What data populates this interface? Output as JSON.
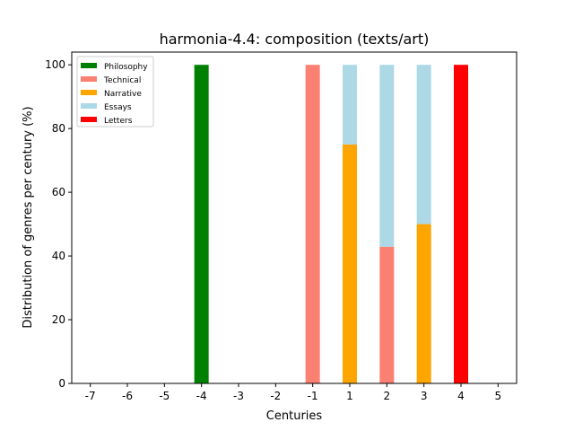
{
  "chart_data": {
    "type": "bar",
    "stacked": true,
    "title": "harmonia-4.4: composition (texts/art)",
    "xlabel": "Centuries",
    "ylabel": "Distribution of genres per century (%)",
    "categories": [
      "-7",
      "-6",
      "-5",
      "-4",
      "-3",
      "-2",
      "-1",
      "1",
      "2",
      "3",
      "4",
      "5"
    ],
    "ylim": [
      0,
      104
    ],
    "yticks": [
      0,
      20,
      40,
      60,
      80,
      100
    ],
    "grid": false,
    "legend_position": "top-left",
    "series": [
      {
        "name": "Philosophy",
        "color": "#008000",
        "values": [
          0,
          0,
          0,
          100,
          0,
          0,
          0,
          0,
          0,
          0,
          0,
          0
        ]
      },
      {
        "name": "Technical",
        "color": "#fa8072",
        "values": [
          0,
          0,
          0,
          0,
          0,
          0,
          100,
          0,
          42.9,
          0,
          0,
          0
        ]
      },
      {
        "name": "Narrative",
        "color": "#ffa500",
        "values": [
          0,
          0,
          0,
          0,
          0,
          0,
          0,
          75,
          0,
          50,
          0,
          0
        ]
      },
      {
        "name": "Essays",
        "color": "#add8e6",
        "values": [
          0,
          0,
          0,
          0,
          0,
          0,
          0,
          25,
          57.1,
          50,
          0,
          0
        ]
      },
      {
        "name": "Letters",
        "color": "#ff0000",
        "values": [
          0,
          0,
          0,
          0,
          0,
          0,
          0,
          0,
          0,
          0,
          100,
          0
        ]
      }
    ]
  }
}
